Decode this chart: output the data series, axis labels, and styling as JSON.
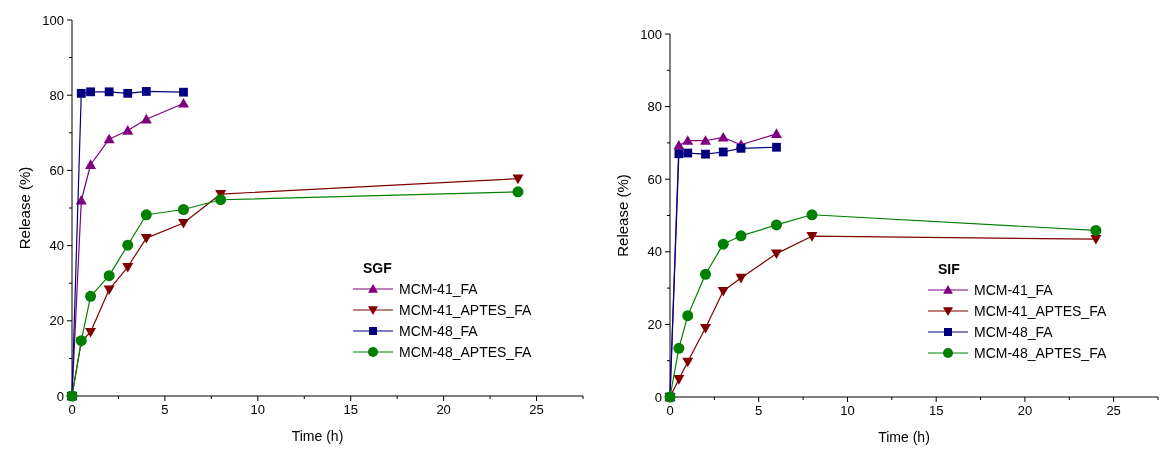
{
  "chart_data": [
    {
      "type": "line",
      "legend_title": "SGF",
      "xlabel": "Time (h)",
      "ylabel": "Release (%)",
      "xlim": [
        0,
        27.5
      ],
      "ylim": [
        0,
        100
      ],
      "xticks": [
        0,
        {
          "value": 2.5,
          "label": null
        },
        5,
        {
          "value": 7.5,
          "label": null
        },
        10,
        {
          "value": 12.5,
          "label": null
        },
        15,
        {
          "value": 17.5,
          "label": null
        },
        20,
        {
          "value": 22.5,
          "label": null
        },
        25,
        {
          "value": 27.5,
          "label": null
        }
      ],
      "yticks": [
        0,
        {
          "value": 10,
          "label": null
        },
        20,
        {
          "value": 30,
          "label": null
        },
        40,
        {
          "value": 50,
          "label": null
        },
        60,
        {
          "value": 70,
          "label": null
        },
        80,
        {
          "value": 90,
          "label": null
        },
        100
      ],
      "grid": false,
      "legend": "bottom right",
      "line_style": "solid",
      "series": [
        {
          "name": "MCM-41_FA",
          "color": "#800080",
          "marker": "triangle",
          "x": [
            0,
            0.5,
            1,
            2,
            3,
            4,
            6
          ],
          "values": [
            0,
            52,
            61.5,
            68.3,
            70.6,
            73.6,
            77.8
          ]
        },
        {
          "name": "MCM-41_APTES_FA",
          "color": "#800000",
          "marker": "triangle-down",
          "x": [
            0,
            0.5,
            1,
            2,
            3,
            4,
            6,
            8,
            24
          ],
          "values": [
            0,
            14.5,
            17,
            28.3,
            34.3,
            42,
            46,
            53.7,
            57.8
          ]
        },
        {
          "name": "MCM-48_FA",
          "color": "#000080",
          "marker": "square",
          "x": [
            0,
            0.5,
            1,
            2,
            3,
            4,
            6
          ],
          "values": [
            0,
            80.5,
            80.9,
            80.9,
            80.5,
            81,
            80.8
          ]
        },
        {
          "name": "MCM-48_APTES_FA",
          "color": "#008000",
          "marker": "circle",
          "x": [
            0,
            0.5,
            1,
            2,
            3,
            4,
            6,
            8,
            24
          ],
          "values": [
            0,
            14.7,
            26.5,
            32,
            40.1,
            48.2,
            49.6,
            52.2,
            54.3
          ]
        }
      ]
    },
    {
      "type": "line",
      "legend_title": "SIF",
      "xlabel": "Time (h)",
      "ylabel": "Release (%)",
      "xlim": [
        0,
        27.5
      ],
      "ylim": [
        0,
        100
      ],
      "xticks": [
        0,
        {
          "value": 2.5,
          "label": null
        },
        5,
        {
          "value": 7.5,
          "label": null
        },
        10,
        {
          "value": 12.5,
          "label": null
        },
        15,
        {
          "value": 17.5,
          "label": null
        },
        20,
        {
          "value": 22.5,
          "label": null
        },
        25,
        {
          "value": 27.5,
          "label": null
        }
      ],
      "yticks": [
        0,
        {
          "value": 10,
          "label": null
        },
        20,
        {
          "value": 30,
          "label": null
        },
        40,
        {
          "value": 50,
          "label": null
        },
        60,
        {
          "value": 70,
          "label": null
        },
        80,
        {
          "value": 90,
          "label": null
        },
        100
      ],
      "grid": false,
      "legend": "bottom right",
      "line_style": "solid",
      "series": [
        {
          "name": "MCM-41_FA",
          "color": "#800080",
          "marker": "triangle",
          "x": [
            0,
            0.5,
            1,
            2,
            3,
            4,
            6
          ],
          "values": [
            0,
            69.3,
            70.6,
            70.6,
            71.5,
            69.5,
            72.5
          ]
        },
        {
          "name": "MCM-41_APTES_FA",
          "color": "#800000",
          "marker": "triangle-down",
          "x": [
            0,
            0.5,
            1,
            2,
            3,
            4,
            6,
            8,
            24
          ],
          "values": [
            0,
            4.9,
            9.7,
            19,
            29.2,
            32.8,
            39.5,
            44.3,
            43.5
          ]
        },
        {
          "name": "MCM-48_FA",
          "color": "#000080",
          "marker": "square",
          "x": [
            0,
            0.5,
            1,
            2,
            3,
            4,
            6
          ],
          "values": [
            0,
            67,
            67.2,
            66.9,
            67.5,
            68.5,
            68.8
          ]
        },
        {
          "name": "MCM-48_APTES_FA",
          "color": "#008000",
          "marker": "circle",
          "x": [
            0,
            0.5,
            1,
            2,
            3,
            4,
            6,
            8,
            24
          ],
          "values": [
            0,
            13.4,
            22.4,
            33.8,
            42.1,
            44.4,
            47.4,
            50.2,
            45.9
          ]
        }
      ]
    }
  ]
}
